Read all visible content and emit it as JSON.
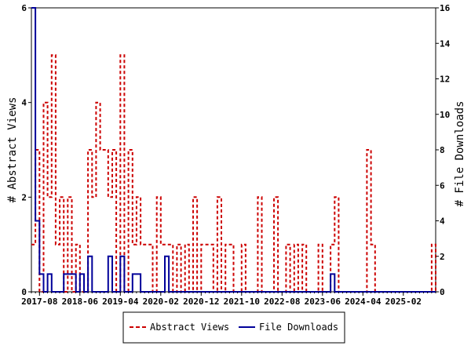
{
  "chart_data": {
    "type": "line",
    "title": "",
    "ylabel_left": "# Abstract Views",
    "ylabel_right": "# File Downloads",
    "ylim_left": [
      0,
      6
    ],
    "ylim_right": [
      0,
      16
    ],
    "yticks_left": [
      "0",
      "2",
      "4",
      "6"
    ],
    "yticks_right": [
      "0",
      "2",
      "4",
      "6",
      "8",
      "10",
      "12",
      "14",
      "16"
    ],
    "x_start": "2017-06",
    "x_end": "2025-10",
    "xticks": [
      "2017-08",
      "2018-06",
      "2019-04",
      "2020-02",
      "2020-12",
      "2021-10",
      "2022-08",
      "2023-06",
      "2024-04",
      "2025-02"
    ],
    "grid": false,
    "legend_position": "bottom",
    "series": [
      {
        "name": "Abstract Views",
        "axis": "left",
        "color": "#cc0000",
        "style": "dashed",
        "x": [
          "2017-06",
          "2017-07",
          "2017-08",
          "2017-09",
          "2017-10",
          "2017-11",
          "2017-12",
          "2018-01",
          "2018-02",
          "2018-03",
          "2018-04",
          "2018-05",
          "2018-06",
          "2018-07",
          "2018-08",
          "2018-09",
          "2018-10",
          "2018-11",
          "2018-12",
          "2019-01",
          "2019-02",
          "2019-03",
          "2019-04",
          "2019-05",
          "2019-06",
          "2019-07",
          "2019-08",
          "2019-09",
          "2019-10",
          "2019-11",
          "2019-12",
          "2020-01",
          "2020-02",
          "2020-03",
          "2020-04",
          "2020-05",
          "2020-06",
          "2020-07",
          "2020-08",
          "2020-09",
          "2020-10",
          "2020-11",
          "2020-12",
          "2021-01",
          "2021-02",
          "2021-03",
          "2021-04",
          "2021-05",
          "2021-06",
          "2021-07",
          "2021-08",
          "2021-09",
          "2021-10",
          "2021-11",
          "2021-12",
          "2022-01",
          "2022-02",
          "2022-03",
          "2022-04",
          "2022-05",
          "2022-06",
          "2022-07",
          "2022-08",
          "2022-09",
          "2022-10",
          "2022-11",
          "2022-12",
          "2023-01",
          "2023-02",
          "2023-03",
          "2023-04",
          "2023-05",
          "2023-06",
          "2023-07",
          "2023-08",
          "2023-09",
          "2023-10",
          "2023-11",
          "2023-12",
          "2024-01",
          "2024-02",
          "2024-03",
          "2024-04",
          "2024-05",
          "2024-06",
          "2024-07",
          "2024-08",
          "2024-09",
          "2024-10",
          "2024-11",
          "2024-12",
          "2025-01",
          "2025-02",
          "2025-03",
          "2025-04",
          "2025-05",
          "2025-06",
          "2025-07",
          "2025-08",
          "2025-09",
          "2025-10"
        ],
        "values": [
          1,
          3,
          0,
          4,
          2,
          5,
          1,
          2,
          0,
          2,
          0,
          1,
          0,
          0,
          3,
          2,
          4,
          3,
          3,
          2,
          3,
          0,
          5,
          0,
          3,
          1,
          2,
          1,
          1,
          1,
          0,
          2,
          1,
          1,
          1,
          0,
          1,
          0,
          1,
          0,
          2,
          0,
          1,
          1,
          1,
          0,
          2,
          0,
          1,
          1,
          0,
          0,
          1,
          0,
          0,
          0,
          2,
          0,
          0,
          0,
          2,
          0,
          0,
          1,
          0,
          1,
          0,
          1,
          0,
          0,
          0,
          1,
          0,
          0,
          1,
          2,
          0,
          0,
          0,
          0,
          0,
          0,
          0,
          3,
          1,
          0,
          0,
          0,
          0,
          0,
          0,
          0,
          0,
          0,
          0,
          0,
          0,
          0,
          0,
          1,
          0
        ]
      },
      {
        "name": "File Downloads",
        "axis": "right",
        "color": "#000099",
        "style": "solid",
        "x": [
          "2017-06",
          "2017-07",
          "2017-08",
          "2017-09",
          "2017-10",
          "2017-11",
          "2017-12",
          "2018-01",
          "2018-02",
          "2018-03",
          "2018-04",
          "2018-05",
          "2018-06",
          "2018-07",
          "2018-08",
          "2018-09",
          "2018-10",
          "2018-11",
          "2018-12",
          "2019-01",
          "2019-02",
          "2019-03",
          "2019-04",
          "2019-05",
          "2019-06",
          "2019-07",
          "2019-08",
          "2019-09",
          "2019-10",
          "2019-11",
          "2019-12",
          "2020-01",
          "2020-02",
          "2020-03",
          "2020-04",
          "2020-05",
          "2020-06",
          "2020-07",
          "2020-08",
          "2020-09",
          "2020-10",
          "2020-11",
          "2020-12",
          "2021-01",
          "2021-02",
          "2021-03",
          "2021-04",
          "2021-05",
          "2021-06",
          "2021-07",
          "2021-08",
          "2021-09",
          "2021-10",
          "2021-11",
          "2021-12",
          "2022-01",
          "2022-02",
          "2022-03",
          "2022-04",
          "2022-05",
          "2022-06",
          "2022-07",
          "2022-08",
          "2022-09",
          "2022-10",
          "2022-11",
          "2022-12",
          "2023-01",
          "2023-02",
          "2023-03",
          "2023-04",
          "2023-05",
          "2023-06",
          "2023-07",
          "2023-08",
          "2023-09",
          "2023-10",
          "2023-11",
          "2023-12",
          "2024-01",
          "2024-02",
          "2024-03",
          "2024-04",
          "2024-05",
          "2024-06",
          "2024-07",
          "2024-08",
          "2024-09",
          "2024-10",
          "2024-11",
          "2024-12",
          "2025-01",
          "2025-02",
          "2025-03",
          "2025-04",
          "2025-05",
          "2025-06",
          "2025-07",
          "2025-08",
          "2025-09",
          "2025-10"
        ],
        "values": [
          16,
          4,
          1,
          0,
          1,
          0,
          0,
          0,
          1,
          1,
          1,
          0,
          1,
          0,
          2,
          0,
          0,
          0,
          0,
          2,
          0,
          0,
          2,
          0,
          0,
          1,
          1,
          0,
          0,
          0,
          0,
          0,
          0,
          2,
          0,
          0,
          0,
          0,
          0,
          0,
          0,
          0,
          0,
          0,
          0,
          0,
          0,
          0,
          0,
          0,
          0,
          0,
          0,
          0,
          0,
          0,
          0,
          0,
          0,
          0,
          0,
          0,
          0,
          0,
          0,
          0,
          0,
          0,
          0,
          0,
          0,
          0,
          0,
          0,
          1,
          0,
          0,
          0,
          0,
          0,
          0,
          0,
          0,
          0,
          0,
          0,
          0,
          0,
          0,
          0,
          0,
          0,
          0,
          0,
          0,
          0,
          0,
          0,
          0,
          0,
          0
        ]
      }
    ]
  }
}
